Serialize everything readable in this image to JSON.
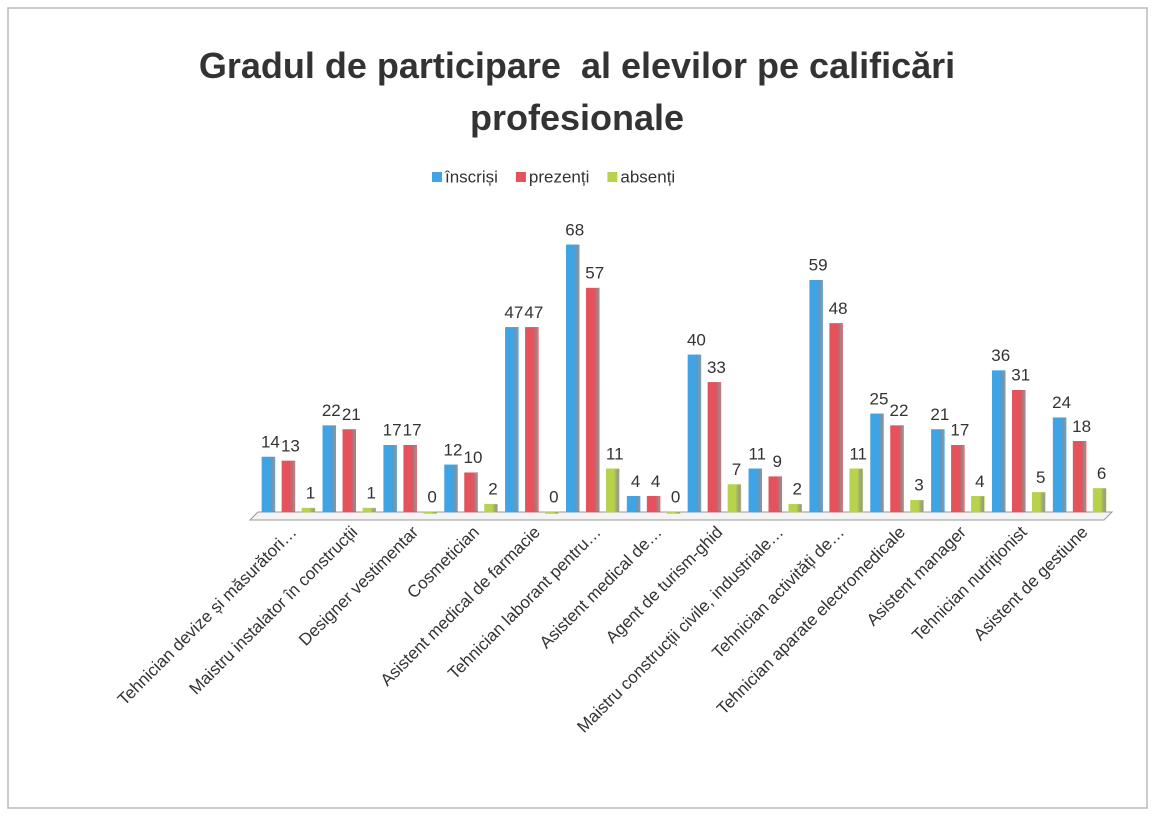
{
  "chart_data": {
    "type": "bar",
    "title": "Gradul de participare  al elevilor pe calificări profesionale",
    "categories": [
      "Tehnician devize și măsurători…",
      "Maistru instalator în construcții",
      "Designer vestimentar",
      "Cosmetician",
      "Asistent medical de farmacie",
      "Tehnician laborant pentru…",
      "Asistent medical de…",
      "Agent de turism-ghid",
      "Maistru construcții civile, industriale…",
      "Tehnician activități de…",
      "Tehnician aparate electromedicale",
      "Asistent manager",
      "Tehnician nutriționist",
      "Asistent de gestiune"
    ],
    "series": [
      {
        "name": "înscriși",
        "color": "#3fa4e6",
        "values": [
          14,
          22,
          17,
          12,
          47,
          68,
          4,
          40,
          11,
          59,
          25,
          21,
          36,
          24
        ]
      },
      {
        "name": "prezenți",
        "color": "#e5525c",
        "values": [
          13,
          21,
          17,
          10,
          47,
          57,
          4,
          33,
          9,
          48,
          22,
          17,
          31,
          18
        ]
      },
      {
        "name": "absenți",
        "color": "#b7d34c",
        "values": [
          1,
          1,
          0,
          2,
          0,
          11,
          0,
          7,
          2,
          11,
          3,
          4,
          5,
          6
        ]
      }
    ],
    "ylim": [
      0,
      70
    ],
    "legend": "top"
  }
}
